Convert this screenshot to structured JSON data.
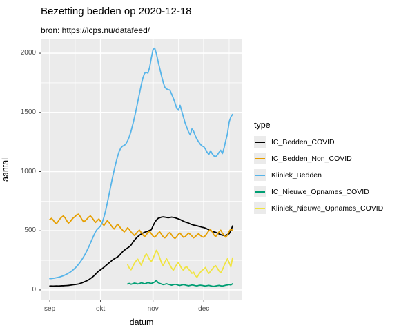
{
  "title": "Bezetting bedden op 2020-12-18",
  "subtitle": "bron: https://lcps.nu/datafeed/",
  "colors": {
    "panel_background": "#EBEBEB",
    "grid_major": "#FFFFFF",
    "grid_minor": "#FFFFFF",
    "tick_text": "#4D4D4D",
    "tick_mark": "#333333"
  },
  "chart_data": {
    "type": "line",
    "title": "Bezetting bedden op 2020-12-18",
    "subtitle": "bron: https://lcps.nu/datafeed/",
    "xlabel": "datum",
    "ylabel": "aantal",
    "legend_title": "type",
    "legend_position": "right",
    "grid": "on",
    "x_start_date": "2020-09-01",
    "x_end_date": "2020-12-18",
    "x_ticks": [
      {
        "label": "sep",
        "day": 0
      },
      {
        "label": "okt",
        "day": 30
      },
      {
        "label": "nov",
        "day": 61
      },
      {
        "label": "dec",
        "day": 91
      }
    ],
    "x_minor_days": [
      15,
      45,
      76,
      106
    ],
    "y_ticks": [
      0,
      500,
      1000,
      1500,
      2000
    ],
    "y_minor": [
      250,
      750,
      1250,
      1750
    ],
    "ylim": [
      -82,
      2117
    ],
    "xlim_days": [
      -5.35,
      113.35
    ],
    "series": [
      {
        "name": "IC_Bedden_COVID",
        "color": "#000000",
        "start_day": 0,
        "values": [
          33,
          33,
          32,
          33,
          34,
          33,
          34,
          35,
          35,
          36,
          37,
          38,
          40,
          42,
          44,
          46,
          48,
          50,
          55,
          60,
          66,
          72,
          78,
          86,
          96,
          106,
          118,
          132,
          148,
          160,
          170,
          180,
          192,
          204,
          216,
          228,
          240,
          252,
          262,
          270,
          278,
          290,
          306,
          322,
          335,
          345,
          355,
          365,
          378,
          400,
          420,
          436,
          450,
          462,
          472,
          480,
          487,
          492,
          497,
          503,
          509,
          540,
          570,
          590,
          605,
          610,
          615,
          617,
          615,
          612,
          610,
          612,
          615,
          613,
          610,
          605,
          600,
          595,
          588,
          580,
          574,
          570,
          565,
          558,
          552,
          548,
          545,
          542,
          538,
          534,
          530,
          527,
          522,
          515,
          508,
          500,
          495,
          490,
          487,
          480,
          473,
          467,
          462,
          460,
          462,
          468,
          475,
          500,
          540
        ]
      },
      {
        "name": "IC_Bedden_Non_COVID",
        "color": "#E69F00",
        "start_day": 0,
        "values": [
          595,
          605,
          590,
          570,
          560,
          580,
          600,
          615,
          625,
          610,
          585,
          565,
          575,
          595,
          610,
          620,
          635,
          640,
          620,
          595,
          575,
          585,
          600,
          615,
          625,
          610,
          590,
          570,
          585,
          600,
          580,
          560,
          545,
          565,
          585,
          570,
          550,
          530,
          515,
          535,
          555,
          540,
          520,
          505,
          490,
          505,
          525,
          510,
          490,
          475,
          460,
          475,
          495,
          505,
          485,
          465,
          450,
          465,
          485,
          495,
          475,
          455,
          445,
          460,
          480,
          490,
          470,
          450,
          440,
          455,
          475,
          485,
          465,
          445,
          435,
          450,
          470,
          480,
          460,
          445,
          450,
          465,
          480,
          470,
          455,
          440,
          450,
          465,
          475,
          460,
          450,
          445,
          460,
          480,
          500,
          510,
          490,
          465,
          450,
          470,
          490,
          505,
          480,
          460,
          445,
          465,
          495,
          515,
          505
        ]
      },
      {
        "name": "Kliniek_Bedden",
        "color": "#56B4E9",
        "start_day": 0,
        "values": [
          95,
          96,
          98,
          100,
          103,
          106,
          110,
          115,
          120,
          126,
          133,
          141,
          150,
          160,
          172,
          185,
          200,
          217,
          236,
          257,
          280,
          305,
          333,
          363,
          395,
          428,
          460,
          490,
          512,
          525,
          540,
          570,
          615,
          670,
          735,
          805,
          875,
          945,
          1010,
          1070,
          1125,
          1170,
          1200,
          1215,
          1220,
          1235,
          1260,
          1295,
          1340,
          1395,
          1455,
          1520,
          1590,
          1660,
          1730,
          1790,
          1830,
          1838,
          1832,
          1880,
          1960,
          2030,
          2043,
          1995,
          1930,
          1870,
          1810,
          1755,
          1712,
          1698,
          1692,
          1688,
          1655,
          1620,
          1580,
          1535,
          1518,
          1560,
          1510,
          1460,
          1410,
          1372,
          1335,
          1310,
          1360,
          1340,
          1302,
          1272,
          1250,
          1230,
          1216,
          1210,
          1190,
          1162,
          1145,
          1175,
          1150,
          1132,
          1126,
          1140,
          1162,
          1180,
          1152,
          1200,
          1262,
          1320,
          1420,
          1462,
          1483
        ]
      },
      {
        "name": "IC_Nieuwe_Opnames_COVID",
        "color": "#009E73",
        "start_day": 46,
        "values": [
          50,
          55,
          48,
          52,
          58,
          55,
          50,
          54,
          60,
          57,
          52,
          56,
          62,
          58,
          55,
          60,
          68,
          80,
          62,
          55,
          50,
          45,
          48,
          52,
          48,
          44,
          40,
          44,
          48,
          45,
          40,
          38,
          42,
          45,
          42,
          38,
          35,
          38,
          42,
          40,
          36,
          34,
          38,
          40,
          38,
          35,
          33,
          36,
          38,
          35,
          32,
          30,
          33,
          36,
          38,
          35,
          33,
          36,
          40,
          42,
          45,
          42,
          52
        ]
      },
      {
        "name": "Kliniek_Nieuwe_Opnames_COVID",
        "color": "#F0E442",
        "start_day": 46,
        "values": [
          215,
          185,
          170,
          195,
          225,
          245,
          260,
          235,
          210,
          245,
          280,
          305,
          285,
          255,
          240,
          265,
          300,
          335,
          310,
          270,
          230,
          205,
          235,
          263,
          240,
          210,
          185,
          166,
          190,
          215,
          234,
          205,
          180,
          166,
          190,
          195,
          175,
          160,
          140,
          150,
          120,
          107,
          130,
          150,
          165,
          175,
          190,
          160,
          140,
          158,
          175,
          195,
          205,
          185,
          160,
          145,
          170,
          205,
          235,
          263,
          230,
          195,
          270
        ]
      }
    ]
  }
}
